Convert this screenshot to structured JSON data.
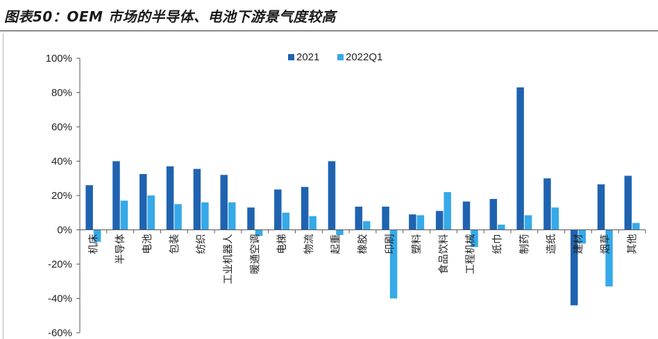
{
  "header": {
    "title": "图表50：OEM 市场的半导体、电池下游景气度较高"
  },
  "colors": {
    "series_2021": "#1f63b0",
    "series_2022Q1": "#36a9e8",
    "axis": "#555555"
  },
  "chart_data": {
    "type": "bar",
    "title": "图表50：OEM 市场的半导体、电池下游景气度较高",
    "xlabel": "",
    "ylabel": "",
    "ylim": [
      -60,
      100
    ],
    "yticks": [
      100,
      80,
      60,
      40,
      20,
      0,
      -20,
      -40,
      -60
    ],
    "ytick_labels": [
      "100%",
      "80%",
      "60%",
      "40%",
      "20%",
      "0%",
      "-20%",
      "-40%",
      "-60%"
    ],
    "grid": false,
    "legend": "top",
    "categories": [
      "机床",
      "半导体",
      "电池",
      "包装",
      "纺织",
      "工业机器人",
      "暖通空调",
      "电梯",
      "物流",
      "起重",
      "橡胶",
      "印刷",
      "塑料",
      "食品饮料",
      "工程机械",
      "纸巾",
      "制药",
      "造纸",
      "建材",
      "烟草",
      "其他"
    ],
    "series": [
      {
        "name": "2021",
        "values": [
          26,
          40,
          32.5,
          37,
          35.5,
          32,
          13,
          23.5,
          25,
          40,
          13.5,
          13.5,
          9,
          11,
          16.5,
          18,
          83,
          30,
          -44,
          26.5,
          31.5
        ]
      },
      {
        "name": "2022Q1",
        "values": [
          -7,
          17,
          20,
          15,
          16,
          16,
          -3.5,
          10,
          8,
          -3,
          5,
          -40,
          8.5,
          22,
          -10,
          3,
          8.5,
          13,
          -8,
          -33,
          4
        ]
      }
    ]
  }
}
